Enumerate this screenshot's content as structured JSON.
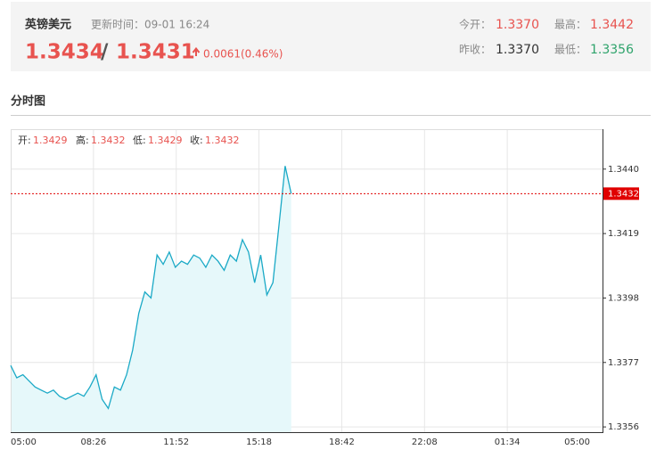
{
  "header": {
    "title": "英镑美元",
    "update_time": "更新时间：09-01 16:24",
    "bid": "1.3434",
    "separator": "/",
    "ask": "1.3431",
    "change": "0.0061(0.46%)",
    "open_label": "今开：",
    "open": "1.3370",
    "high_label": "最高：",
    "high": "1.3442",
    "prev_close_label": "昨收：",
    "prev_close": "1.3370",
    "low_label": "最低：",
    "low": "1.3356"
  },
  "section_title": "分时图",
  "chart_data": {
    "type": "line",
    "info": {
      "open_label": "开:",
      "open": "1.3429",
      "high_label": "高:",
      "high": "1.3432",
      "low_label": "低:",
      "low": "1.3429",
      "close_label": "收:",
      "close": "1.3432"
    },
    "xtick_labels": [
      "05:00",
      "08:26",
      "11:52",
      "15:18",
      "18:42",
      "22:08",
      "01:34",
      "05:00"
    ],
    "series": [
      {
        "color": "#1aa9c6",
        "values": [
          1.3376,
          1.3372,
          1.3373,
          1.3371,
          1.3369,
          1.3368,
          1.3367,
          1.3368,
          1.3366,
          1.3365,
          1.3366,
          1.3367,
          1.3366,
          1.3369,
          1.3373,
          1.3365,
          1.3362,
          1.3369,
          1.3368,
          1.3373,
          1.3381,
          1.3393,
          1.34,
          1.3398,
          1.3412,
          1.3409,
          1.3413,
          1.3408,
          1.341,
          1.3409,
          1.3412,
          1.3411,
          1.3408,
          1.3412,
          1.341,
          1.3407,
          1.3412,
          1.341,
          1.3417,
          1.3413,
          1.3403,
          1.3412,
          1.3399,
          1.3403,
          1.3422,
          1.3441,
          1.3432,
          null,
          null,
          null,
          null,
          null,
          null,
          null,
          null,
          null,
          null,
          null,
          null,
          null,
          null,
          null,
          null,
          null,
          null,
          null,
          null,
          null,
          null,
          null,
          null,
          null,
          null,
          null,
          null,
          null,
          null,
          null,
          null,
          null,
          null,
          null,
          null,
          null,
          null,
          null,
          null,
          null,
          null,
          null,
          null,
          null,
          null,
          null,
          null,
          null
        ]
      }
    ],
    "last_price": 1.3432,
    "last_price_color": "#e00000",
    "ylim": [
      1.3354,
      1.3453
    ],
    "yticks": [
      {
        "value": 1.344,
        "label": "1.3440"
      },
      1.3419,
      1.3398,
      1.3377,
      1.3356
    ],
    "grid": true
  }
}
